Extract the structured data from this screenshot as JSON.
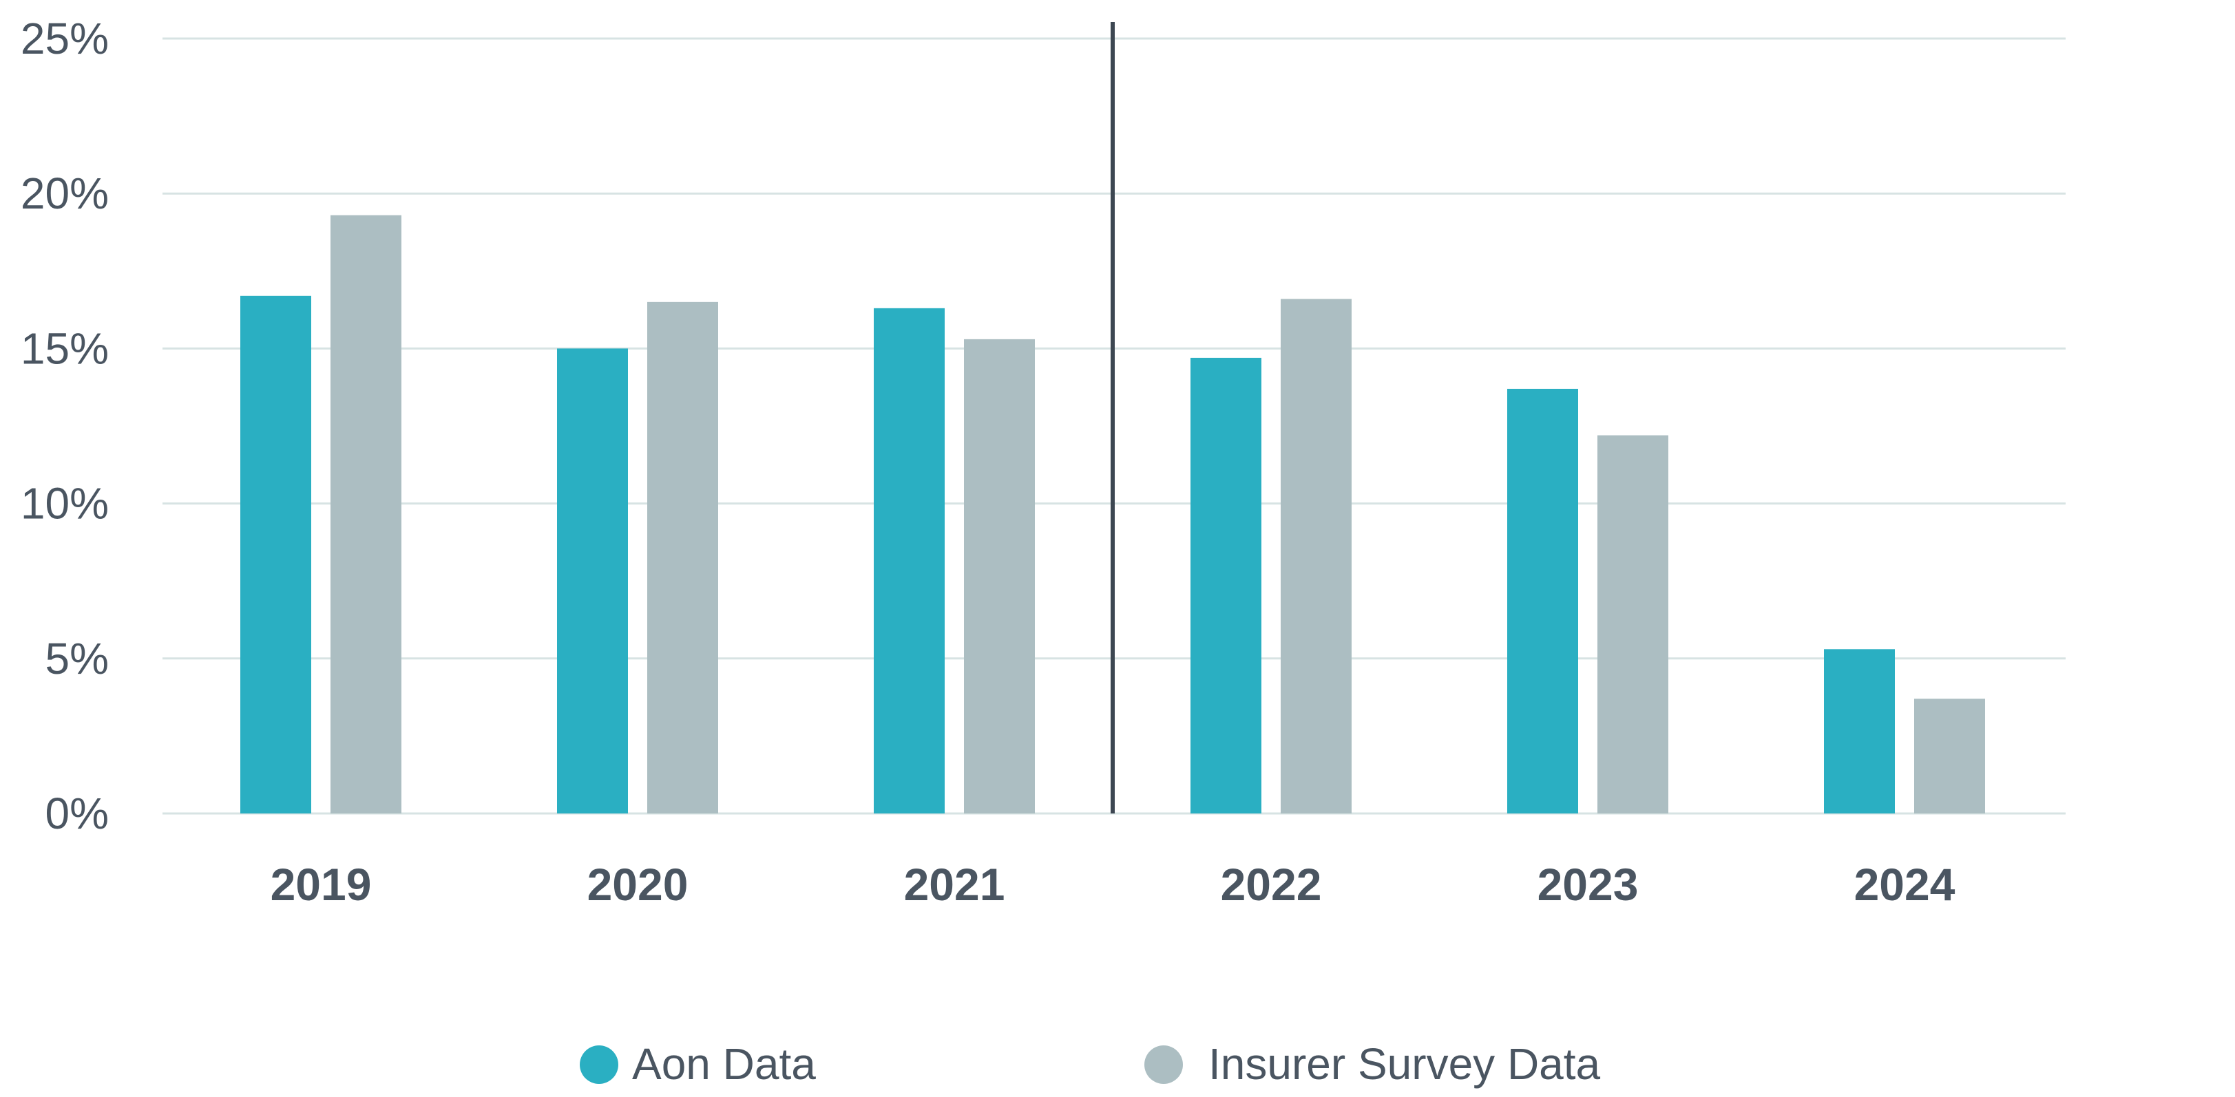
{
  "chart_data": {
    "type": "bar",
    "categories": [
      "2019",
      "2020",
      "2021",
      "2022",
      "2023",
      "2024"
    ],
    "series": [
      {
        "name": "Aon Data",
        "color": "#2aafc2",
        "values": [
          16.7,
          15.0,
          16.3,
          14.7,
          13.7,
          5.3
        ]
      },
      {
        "name": "Insurer Survey Data",
        "color": "#acbec2",
        "values": [
          19.3,
          16.5,
          15.3,
          16.6,
          12.2,
          3.7
        ]
      }
    ],
    "yticks": [
      0,
      5,
      10,
      15,
      20,
      25
    ],
    "ytick_labels": [
      "0%",
      "5%",
      "10%",
      "15%",
      "20%",
      "25%"
    ],
    "ylim": [
      0,
      25
    ],
    "grid": true,
    "legend_position": "bottom-center",
    "divider_after_category": "2021",
    "gridline_color": "#d7e3e3",
    "divider_color": "#3d4752",
    "title": "",
    "xlabel": "",
    "ylabel": ""
  }
}
